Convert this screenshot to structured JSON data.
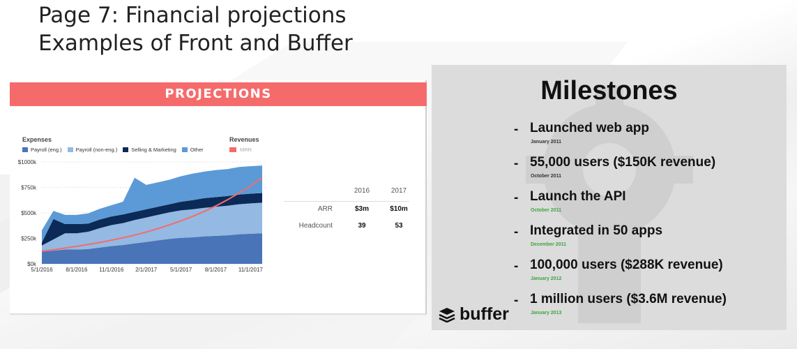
{
  "slide": {
    "title_line1": "Page 7: Financial projections",
    "title_line2": "Examples of Front and Buffer"
  },
  "front": {
    "banner": "PROJECTIONS",
    "expenses_label": "Expenses",
    "revenues_label": "Revenues",
    "legend": [
      {
        "label": "Payroll (eng.)",
        "color": "#4a74b8"
      },
      {
        "label": "Payroll (non-eng.)",
        "color": "#94b9e2"
      },
      {
        "label": "Selling & Marketing",
        "color": "#0c2a57"
      },
      {
        "label": "Other",
        "color": "#5b9ad6"
      }
    ],
    "revenue_legend": {
      "label": "MRR",
      "color": "#f56b6b"
    },
    "table": {
      "headers": [
        "",
        "2016",
        "2017"
      ],
      "rows": [
        {
          "label": "ARR",
          "v2016": "$3m",
          "v2017": "$10m"
        },
        {
          "label": "Headcount",
          "v2016": "39",
          "v2017": "53"
        }
      ]
    }
  },
  "chart_data": {
    "type": "area",
    "stacked": true,
    "grid": true,
    "x": [
      "5/1/2016",
      "6/1/2016",
      "7/1/2016",
      "8/1/2016",
      "9/1/2016",
      "10/1/2016",
      "11/1/2016",
      "12/1/2016",
      "1/1/2017",
      "2/1/2017",
      "3/1/2017",
      "4/1/2017",
      "5/1/2017",
      "6/1/2017",
      "7/1/2017",
      "8/1/2017",
      "9/1/2017",
      "10/1/2017",
      "11/1/2017",
      "12/1/2017"
    ],
    "x_tick_labels": [
      "5/1/2016",
      "8/1/2016",
      "11/1/2016",
      "2/1/2017",
      "5/1/2017",
      "8/1/2017",
      "11/1/2017"
    ],
    "y_tick_labels": [
      "$0k",
      "$250k",
      "$500k",
      "$750k",
      "$1000k"
    ],
    "ylim": [
      0,
      1000
    ],
    "series": [
      {
        "name": "Payroll (eng.)",
        "color": "#4a74b8",
        "values": [
          120,
          130,
          140,
          140,
          145,
          160,
          175,
          185,
          200,
          215,
          230,
          245,
          255,
          260,
          270,
          275,
          280,
          290,
          295,
          300
        ]
      },
      {
        "name": "Payroll (non-eng.)",
        "color": "#94b9e2",
        "values": [
          60,
          110,
          160,
          160,
          170,
          190,
          205,
          215,
          230,
          240,
          250,
          260,
          270,
          275,
          280,
          285,
          290,
          295,
          298,
          300
        ]
      },
      {
        "name": "Selling & Marketing",
        "color": "#0c2a57",
        "values": [
          30,
          200,
          90,
          90,
          80,
          85,
          85,
          85,
          80,
          80,
          80,
          80,
          85,
          90,
          95,
          95,
          95,
          95,
          95,
          95
        ]
      },
      {
        "name": "Other",
        "color": "#5b9ad6",
        "values": [
          120,
          80,
          90,
          90,
          100,
          105,
          110,
          125,
          335,
          240,
          240,
          240,
          250,
          260,
          260,
          265,
          265,
          270,
          270,
          270
        ]
      }
    ],
    "line_series": {
      "name": "MRR",
      "color": "#f56b6b",
      "values": [
        125,
        138,
        155,
        172,
        190,
        210,
        232,
        256,
        282,
        312,
        345,
        382,
        422,
        466,
        514,
        568,
        628,
        694,
        766,
        845
      ]
    }
  },
  "buffer": {
    "title": "Milestones",
    "milestones": [
      {
        "text": "Launched web app",
        "date": "January 2011",
        "green": false
      },
      {
        "text": "55,000 users ($150K revenue)",
        "date": "October 2011",
        "green": false
      },
      {
        "text": "Launch the API",
        "date": "October 2011",
        "green": true
      },
      {
        "text": "Integrated in 50 apps",
        "date": "December 2011",
        "green": true
      },
      {
        "text": "100,000 users ($288K revenue)",
        "date": "January 2012",
        "green": true
      },
      {
        "text": "1 million users ($3.6M revenue)",
        "date": "January 2013",
        "green": true
      }
    ],
    "logo_text": "buffer"
  }
}
